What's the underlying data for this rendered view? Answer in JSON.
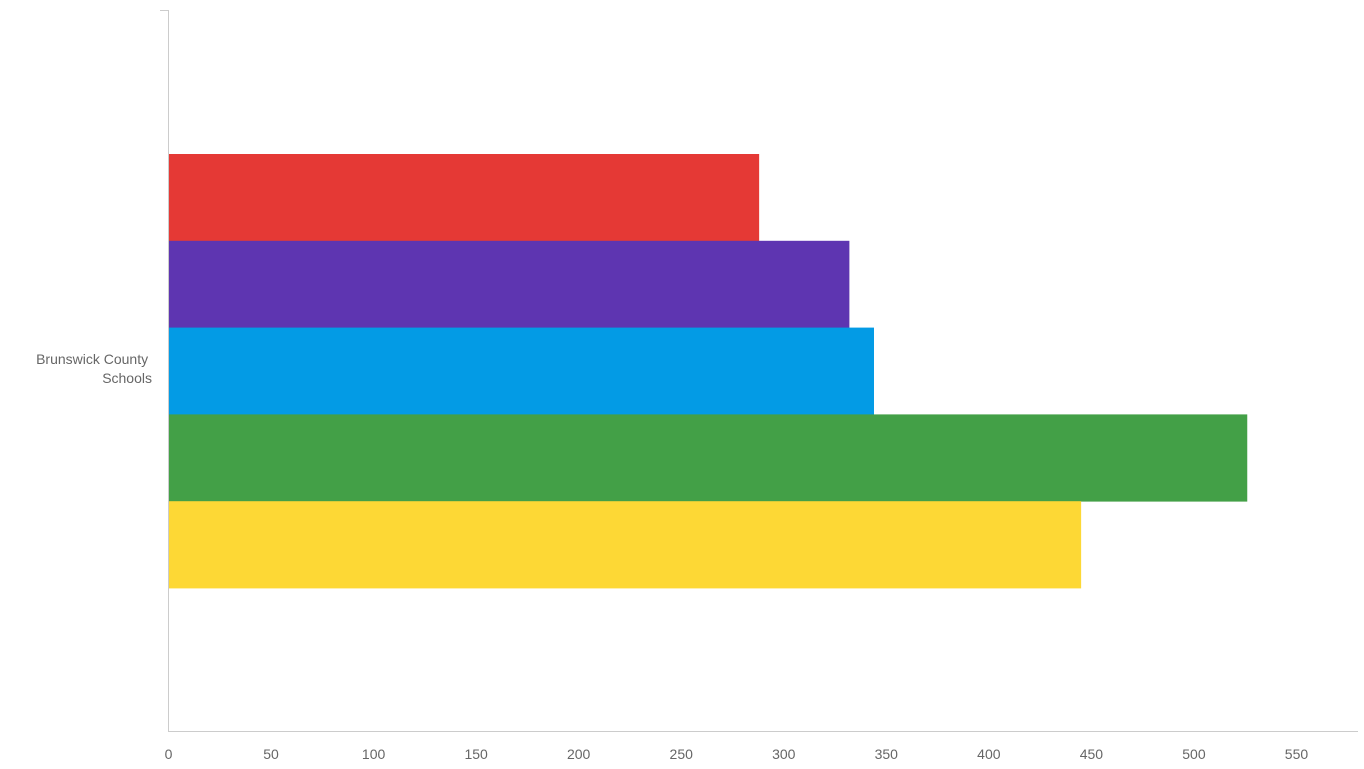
{
  "chart_data": {
    "type": "bar",
    "orientation": "horizontal",
    "categories": [
      "Brunswick County Schools"
    ],
    "category_label_lines": [
      "Brunswick County",
      "Schools"
    ],
    "series": [
      {
        "values": [
          288
        ],
        "color": "#e53935"
      },
      {
        "values": [
          332
        ],
        "color": "#5e35b1"
      },
      {
        "values": [
          344
        ],
        "color": "#039be5"
      },
      {
        "values": [
          526
        ],
        "color": "#43a047"
      },
      {
        "values": [
          445
        ],
        "color": "#fdd835"
      }
    ],
    "xlim": [
      0,
      580
    ],
    "xticks": [
      0,
      50,
      100,
      150,
      200,
      250,
      300,
      350,
      400,
      450,
      500,
      550
    ],
    "grid": false,
    "legend": "none"
  }
}
